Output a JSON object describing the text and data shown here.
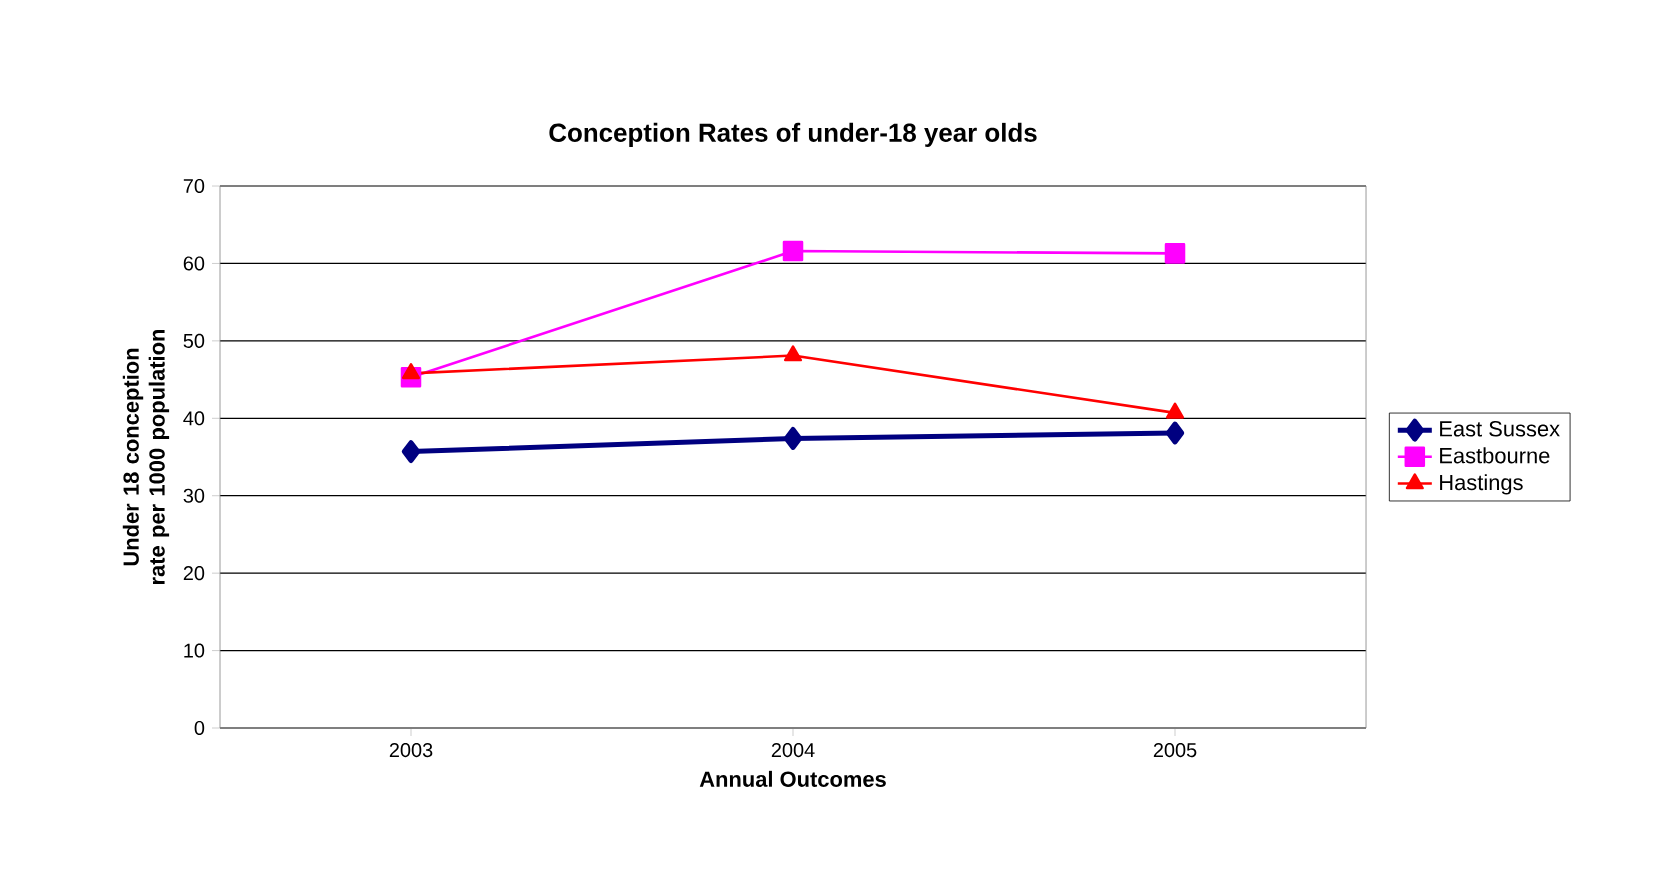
{
  "chart_data": {
    "type": "line",
    "title": "Conception Rates of under-18 year olds",
    "xlabel": "Annual Outcomes",
    "ylabel": "Under 18 conception rate per 1000 population",
    "categories": [
      "2003",
      "2004",
      "2005"
    ],
    "series": [
      {
        "name": "East Sussex",
        "color": "#000080",
        "marker": "diamond",
        "values": [
          35.7,
          37.4,
          38.1
        ]
      },
      {
        "name": "Eastbourne",
        "color": "#ff00ff",
        "marker": "square",
        "values": [
          45.3,
          61.6,
          61.3
        ]
      },
      {
        "name": "Hastings",
        "color": "#ff0000",
        "marker": "triangle",
        "values": [
          45.8,
          48.1,
          40.7
        ]
      }
    ],
    "ylim": [
      0,
      70
    ],
    "yticks": [
      0,
      10,
      20,
      30,
      40,
      50,
      60,
      70
    ],
    "grid": "y",
    "legend": "right"
  }
}
